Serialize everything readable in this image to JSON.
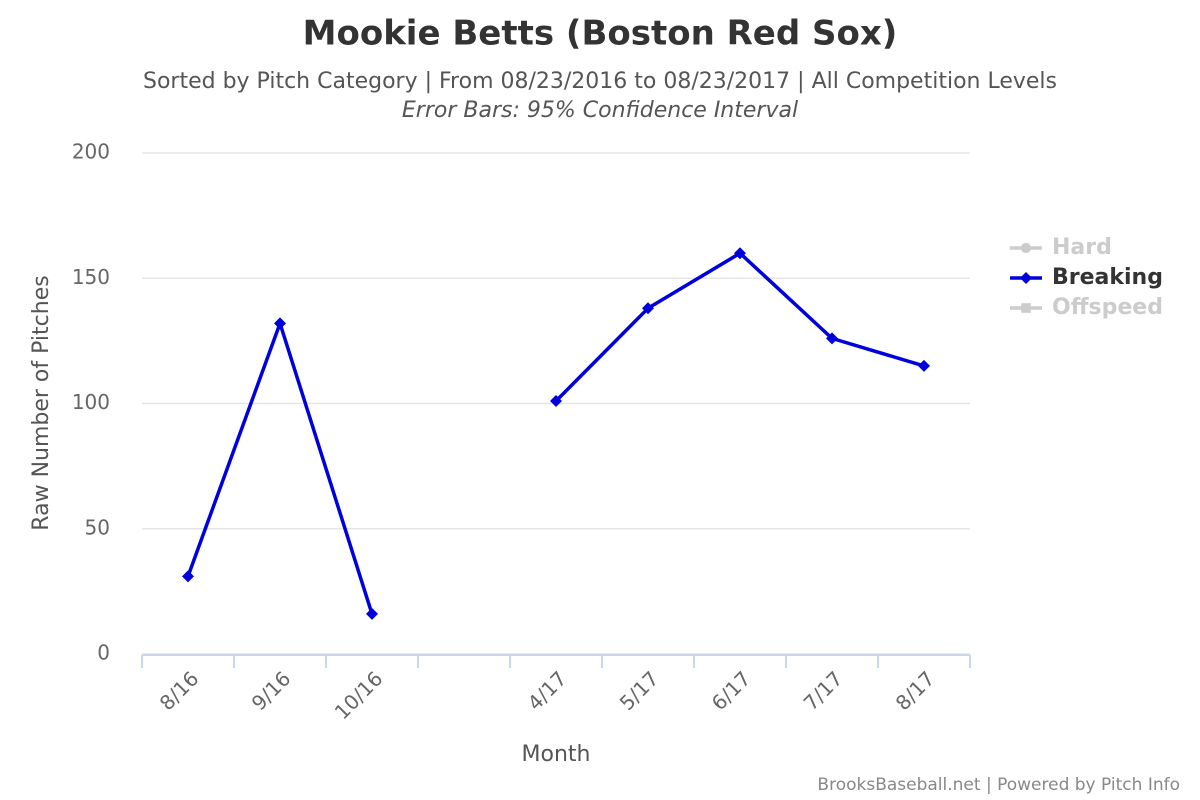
{
  "chart_data": {
    "type": "line",
    "title": "Mookie Betts (Boston Red Sox)",
    "subtitle": "Sorted by Pitch Category | From 08/23/2016 to 08/23/2017 | All Competition Levels",
    "annotation": "Error Bars: 95% Confidence Interval",
    "x_label": "Month",
    "y_label": "Raw Number of Pitches",
    "credits": "BrooksBaseball.net | Powered by Pitch Info",
    "categories": [
      "8/16",
      "9/16",
      "10/16",
      null,
      "4/17",
      "5/17",
      "6/17",
      "7/17",
      "8/17"
    ],
    "series": [
      {
        "name": "Hard",
        "color": "#cccccc",
        "visible": false,
        "marker": "circle",
        "values": [
          null,
          null,
          null,
          null,
          null,
          null,
          null,
          null,
          null
        ]
      },
      {
        "name": "Breaking",
        "color": "#0000dd",
        "visible": true,
        "marker": "diamond",
        "values": [
          31,
          132,
          16,
          null,
          101,
          138,
          160,
          126,
          115
        ]
      },
      {
        "name": "Offspeed",
        "color": "#cccccc",
        "visible": false,
        "marker": "square",
        "values": [
          null,
          null,
          null,
          null,
          null,
          null,
          null,
          null,
          null
        ]
      }
    ],
    "ylim": [
      0,
      200
    ],
    "yticks": [
      0,
      50,
      100,
      150,
      200
    ],
    "grid": true,
    "legend": "right"
  }
}
